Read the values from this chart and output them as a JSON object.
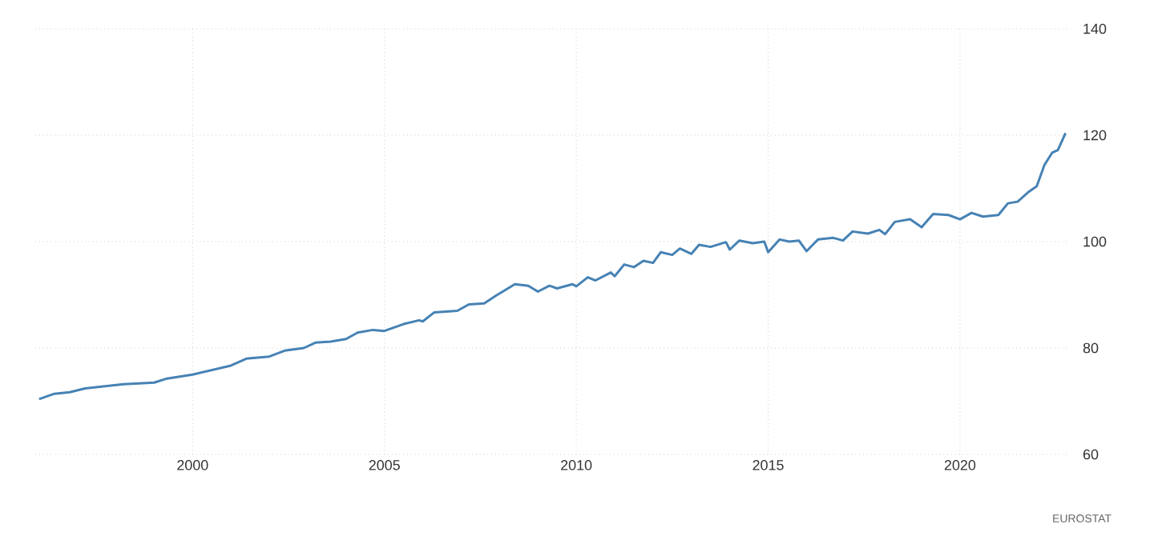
{
  "chart_data": {
    "type": "line",
    "x": [
      1996.0,
      1996.4,
      1996.8,
      1997.2,
      1998.2,
      1999.0,
      1999.3,
      2000.0,
      2001.0,
      2001.4,
      2002.0,
      2002.4,
      2002.9,
      2003.2,
      2003.6,
      2004.0,
      2004.3,
      2004.7,
      2005.0,
      2005.5,
      2005.9,
      2006.0,
      2006.3,
      2006.9,
      2007.2,
      2007.6,
      2007.9,
      2008.4,
      2008.75,
      2009.0,
      2009.3,
      2009.5,
      2009.9,
      2010.0,
      2010.3,
      2010.5,
      2010.9,
      2011.0,
      2011.25,
      2011.5,
      2011.75,
      2012.0,
      2012.2,
      2012.5,
      2012.7,
      2013.0,
      2013.2,
      2013.5,
      2013.9,
      2014.0,
      2014.25,
      2014.6,
      2014.9,
      2015.0,
      2015.3,
      2015.55,
      2015.8,
      2016.0,
      2016.3,
      2016.7,
      2016.95,
      2017.2,
      2017.6,
      2017.9,
      2018.05,
      2018.3,
      2018.7,
      2019.0,
      2019.3,
      2019.7,
      2020.0,
      2020.3,
      2020.6,
      2021.0,
      2021.25,
      2021.5,
      2021.8,
      2022.0,
      2022.2,
      2022.4,
      2022.55,
      2022.75
    ],
    "values": [
      70.4,
      71.4,
      71.7,
      72.4,
      73.2,
      73.5,
      74.2,
      75.0,
      76.7,
      78.0,
      78.4,
      79.5,
      80.0,
      81.0,
      81.2,
      81.7,
      82.9,
      83.4,
      83.2,
      84.5,
      85.2,
      85.0,
      86.7,
      87.0,
      88.2,
      88.4,
      89.8,
      92.0,
      91.7,
      90.6,
      91.7,
      91.2,
      92.0,
      91.6,
      93.3,
      92.7,
      94.2,
      93.5,
      95.7,
      95.2,
      96.4,
      96.0,
      98.0,
      97.5,
      98.7,
      97.7,
      99.4,
      99.0,
      99.9,
      98.5,
      100.2,
      99.7,
      100.0,
      98.0,
      100.4,
      100.0,
      100.2,
      98.2,
      100.4,
      100.7,
      100.2,
      101.9,
      101.5,
      102.2,
      101.4,
      103.7,
      104.2,
      102.7,
      105.2,
      105.0,
      104.2,
      105.4,
      104.7,
      105.0,
      107.2,
      107.5,
      109.4,
      110.4,
      114.4,
      116.7,
      117.2,
      120.4
    ],
    "color": "#4682b4",
    "xlim": [
      1995.9,
      2022.8
    ],
    "ylim": [
      60,
      140
    ],
    "xticks": [
      2000,
      2005,
      2010,
      2015,
      2020
    ],
    "yticks": [
      60,
      80,
      100,
      120,
      140
    ],
    "grid": true,
    "line_style": "solid",
    "marker": "none",
    "annotations": [
      "EUROSTAT"
    ]
  }
}
